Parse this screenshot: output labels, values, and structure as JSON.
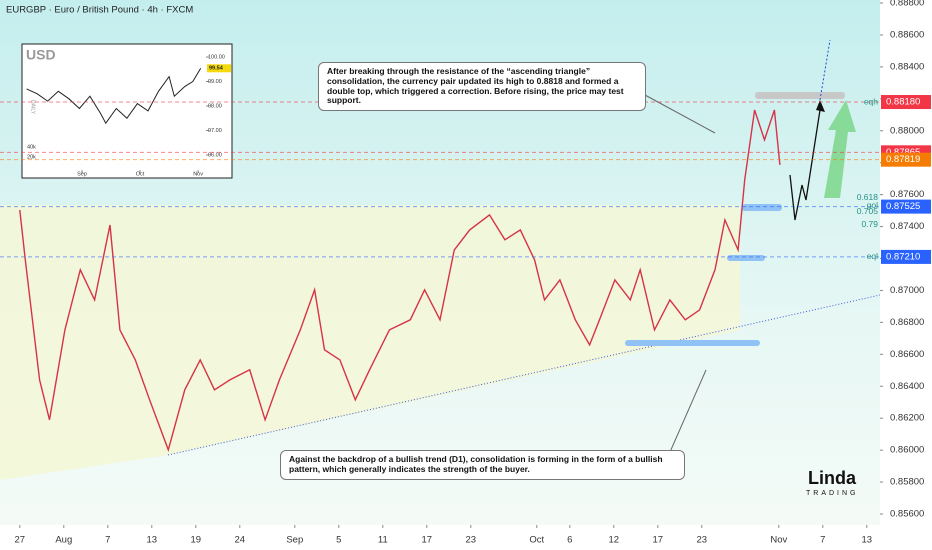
{
  "chart_data": [
    {
      "type": "line",
      "title": "EURGBP · Euro / British Pound · 4h · FXCM",
      "color": "#d63347",
      "x": [
        0,
        0.5,
        1.8,
        2.7,
        4.1,
        5.5,
        6.8,
        8.2,
        9.1,
        10.5,
        11.8,
        13.5,
        15,
        16.4,
        17.7,
        19.1,
        20.9,
        22.3,
        23.6,
        25.5,
        26.8,
        27.7,
        29.1,
        30.5,
        31.8,
        33.6,
        35.5,
        36.8,
        38.2,
        39.5,
        40.9,
        42.7,
        44.1,
        45.5,
        46.8,
        47.7,
        49.1,
        50.5,
        51.8,
        52.7,
        54.1,
        55.5,
        56.4,
        57.7,
        59.1,
        60.5,
        61.8,
        63.2,
        64.1,
        65.3,
        65.9,
        66.8,
        67.7,
        68.6,
        69.1
      ],
      "values": [
        0.87504,
        0.87191,
        0.8644,
        0.8619,
        0.86753,
        0.87129,
        0.86941,
        0.8741,
        0.86753,
        0.86565,
        0.86315,
        0.86002,
        0.86378,
        0.86565,
        0.86378,
        0.8644,
        0.86503,
        0.8619,
        0.8644,
        0.86753,
        0.87004,
        0.86628,
        0.86565,
        0.86315,
        0.86503,
        0.86753,
        0.86816,
        0.87004,
        0.86816,
        0.87254,
        0.87379,
        0.87473,
        0.87317,
        0.87379,
        0.87191,
        0.86941,
        0.87066,
        0.86816,
        0.86659,
        0.86816,
        0.87066,
        0.86941,
        0.87129,
        0.86753,
        0.86941,
        0.86816,
        0.86878,
        0.87129,
        0.87442,
        0.87254,
        0.87692,
        0.8813,
        0.87943,
        0.8813,
        0.87786
      ],
      "xlim": [
        -1.8,
        78.2
      ],
      "ylim": [
        0.85531,
        0.88819
      ],
      "xticks": [
        {
          "value": 0,
          "label": "27"
        },
        {
          "value": 4,
          "label": "Aug"
        },
        {
          "value": 8,
          "label": "7"
        },
        {
          "value": 12,
          "label": "13"
        },
        {
          "value": 16,
          "label": "19"
        },
        {
          "value": 20,
          "label": "24"
        },
        {
          "value": 25,
          "label": "Sep"
        },
        {
          "value": 29,
          "label": "5"
        },
        {
          "value": 33,
          "label": "11"
        },
        {
          "value": 37,
          "label": "17"
        },
        {
          "value": 41,
          "label": "23"
        },
        {
          "value": 47,
          "label": "Oct"
        },
        {
          "value": 50,
          "label": "6"
        },
        {
          "value": 54,
          "label": "12"
        },
        {
          "value": 58,
          "label": "17"
        },
        {
          "value": 62,
          "label": "23"
        },
        {
          "value": 69,
          "label": "Nov"
        },
        {
          "value": 73,
          "label": "7"
        },
        {
          "value": 77,
          "label": "13"
        }
      ],
      "yticks": [
        {
          "value": 0.856,
          "label": "0.85600"
        },
        {
          "value": 0.858,
          "label": "0.85800"
        },
        {
          "value": 0.86,
          "label": "0.86000"
        },
        {
          "value": 0.862,
          "label": "0.86200"
        },
        {
          "value": 0.864,
          "label": "0.86400"
        },
        {
          "value": 0.866,
          "label": "0.86600"
        },
        {
          "value": 0.868,
          "label": "0.86800"
        },
        {
          "value": 0.87,
          "label": "0.87000"
        },
        {
          "value": 0.872,
          "label": "0.87200"
        },
        {
          "value": 0.874,
          "label": "0.87400"
        },
        {
          "value": 0.876,
          "label": "0.87600"
        },
        {
          "value": 0.878,
          "label": "0.87800"
        },
        {
          "value": 0.88,
          "label": "0.88000"
        },
        {
          "value": 0.882,
          "label": "0.88200"
        },
        {
          "value": 0.884,
          "label": "0.88400"
        },
        {
          "value": 0.886,
          "label": "0.88600"
        },
        {
          "value": 0.888,
          "label": "0.88800"
        }
      ],
      "price_levels": [
        {
          "value": 0.8818,
          "label": "0.88180",
          "color": "#f23645"
        },
        {
          "value": 0.87865,
          "label": "0.87865",
          "color": "#f23645"
        },
        {
          "value": 0.87819,
          "label": "0.87819",
          "color": "#f57c00"
        },
        {
          "value": 0.87525,
          "label": "0.87525",
          "color": "#2962ff"
        },
        {
          "value": 0.8721,
          "label": "0.87210",
          "color": "#2962ff"
        }
      ],
      "level_labels": [
        {
          "value": 0.8818,
          "label": "eqh"
        },
        {
          "value": 0.87579,
          "label": "0.618"
        },
        {
          "value": 0.87529,
          "label": "gol"
        },
        {
          "value": 0.87492,
          "label": "0.705"
        },
        {
          "value": 0.8741,
          "label": "0.79"
        },
        {
          "value": 0.8721,
          "label": "eql"
        }
      ],
      "annotations": [
        "After breaking through the resistance of the “ascending triangle” consolidation, the currency pair updated its high to 0.8818 and formed a double top, which triggered a correction. Before rising, the price may test support.",
        "Against the backdrop of a bullish trend (D1), consolidation is forming in the form of a bullish pattern, which generally indicates the strength of the buyer."
      ],
      "logo": {
        "name": "Linda",
        "tagline": "TRADING"
      }
    },
    {
      "type": "line",
      "title": "USD",
      "y_label": "DAILY",
      "color": "#222222",
      "x": [
        0,
        4,
        8,
        12,
        16,
        20,
        24,
        28,
        30,
        34,
        38,
        42,
        46,
        50,
        54,
        56,
        60,
        63,
        66
      ],
      "values": [
        98.7,
        98.5,
        98.2,
        98.6,
        98.3,
        97.9,
        98.4,
        97.7,
        97.3,
        97.9,
        97.5,
        98.1,
        97.8,
        98.6,
        99.2,
        98.4,
        98.8,
        99.0,
        99.54
      ],
      "xlim": [
        -1,
        68
      ],
      "ylim": [
        95.388,
        100.286
      ],
      "xticks": [
        {
          "value": 21,
          "label": "Sep"
        },
        {
          "value": 43,
          "label": "Oct"
        },
        {
          "value": 65,
          "label": "Nov"
        }
      ],
      "yticks": [
        {
          "value": 96,
          "label": "96.00"
        },
        {
          "value": 97,
          "label": "97.00"
        },
        {
          "value": 98,
          "label": "98.00"
        },
        {
          "value": 99,
          "label": "99.00"
        },
        {
          "value": 100,
          "label": "100.00"
        }
      ],
      "last_value": {
        "value": 99.54,
        "label": "99.54"
      },
      "y2lim": [
        -6000,
        234000
      ],
      "y2ticks": [
        {
          "value": 20000,
          "label": "20k"
        },
        {
          "value": 40000,
          "label": "40k"
        }
      ]
    }
  ]
}
